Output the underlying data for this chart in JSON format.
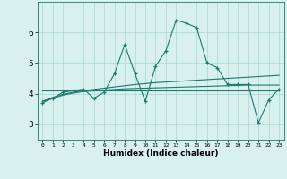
{
  "xlabel": "Humidex (Indice chaleur)",
  "x_values": [
    0,
    1,
    2,
    3,
    4,
    5,
    6,
    7,
    8,
    9,
    10,
    11,
    12,
    13,
    14,
    15,
    16,
    17,
    18,
    19,
    20,
    21,
    22,
    23
  ],
  "y_main": [
    3.7,
    3.85,
    4.05,
    4.1,
    4.15,
    3.85,
    4.05,
    4.65,
    5.6,
    4.65,
    3.75,
    4.9,
    5.4,
    6.4,
    6.3,
    6.15,
    5.0,
    4.85,
    4.3,
    4.3,
    4.3,
    3.05,
    3.8,
    4.15
  ],
  "y_trend1": [
    3.75,
    3.88,
    3.98,
    4.05,
    4.1,
    4.14,
    4.18,
    4.22,
    4.26,
    4.3,
    4.33,
    4.36,
    4.38,
    4.4,
    4.42,
    4.44,
    4.46,
    4.48,
    4.5,
    4.52,
    4.54,
    4.56,
    4.58,
    4.6
  ],
  "y_trend2": [
    3.75,
    3.85,
    3.95,
    4.02,
    4.07,
    4.1,
    4.12,
    4.14,
    4.16,
    4.17,
    4.18,
    4.19,
    4.2,
    4.21,
    4.22,
    4.23,
    4.24,
    4.25,
    4.26,
    4.27,
    4.28,
    4.28,
    4.28,
    4.28
  ],
  "y_flat": [
    4.1,
    4.1,
    4.1,
    4.1,
    4.1,
    4.1,
    4.1,
    4.1,
    4.1,
    4.1,
    4.1,
    4.1,
    4.1,
    4.1,
    4.1,
    4.1,
    4.1,
    4.1,
    4.1,
    4.1,
    4.1,
    4.1,
    4.1,
    4.1
  ],
  "main_color": "#1a7a6e",
  "bg_color": "#d8f0ee",
  "grid_color": "#a8d8d4",
  "ylim": [
    2.5,
    7.0
  ],
  "yticks": [
    3,
    4,
    5,
    6
  ],
  "xticks": [
    0,
    1,
    2,
    3,
    4,
    5,
    6,
    7,
    8,
    9,
    10,
    11,
    12,
    13,
    14,
    15,
    16,
    17,
    18,
    19,
    20,
    21,
    22,
    23
  ]
}
